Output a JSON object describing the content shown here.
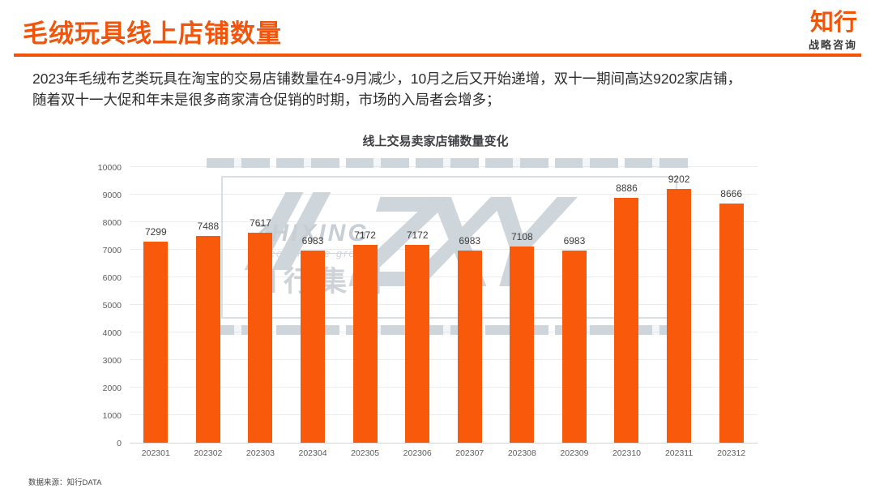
{
  "header": {
    "title": "毛绒玩具线上店铺数量",
    "logo_name": "知行",
    "logo_subtitle": "战略咨询"
  },
  "description": {
    "line1": "2023年毛绒布艺类玩具在淘宝的交易店铺数量在4-9月减少，10月之后又开始递增，双十一期间高达9202家店铺，",
    "line2": "随着双十一大促和年末是很多商家清仓促销的时期，市场的入局者会增多；"
  },
  "chart_data": {
    "type": "bar",
    "title": "线上交易卖家店铺数量变化",
    "categories": [
      "202301",
      "202302",
      "202303",
      "202304",
      "202305",
      "202306",
      "202307",
      "202308",
      "202309",
      "202310",
      "202311",
      "202312"
    ],
    "values": [
      7299,
      7488,
      7617,
      6983,
      7172,
      7172,
      6983,
      7108,
      6983,
      8886,
      9202,
      8666
    ],
    "xlabel": "",
    "ylabel": "",
    "ylim": [
      0,
      10000
    ],
    "ytick_step": 1000,
    "grid": true,
    "legend_position": "none",
    "bar_color": "#F8590B",
    "value_labels": true
  },
  "watermark": {
    "slashes": "//",
    "letters": "ZXY",
    "brand": "ZHIXING",
    "sub": "e-commerce group",
    "cn": "知行集团",
    "reg": "®"
  },
  "footer": {
    "source": "数据来源：知行DATA"
  },
  "colors": {
    "accent": "#F1550C",
    "bar": "#F8590B",
    "watermark": "#CCD3D9",
    "grid": "#ECECEC",
    "text": "#2D2D2D"
  }
}
